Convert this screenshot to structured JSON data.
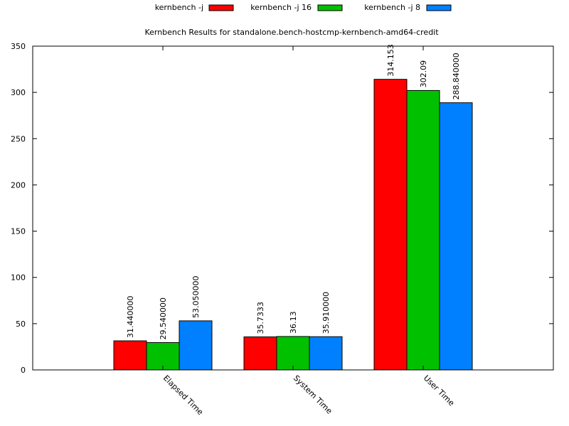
{
  "chart_data": {
    "type": "bar",
    "title": "Kernbench Results for standalone.bench-hostcmp-kernbench-amd64-credit",
    "xlabel": "",
    "ylabel": "",
    "ylim": [
      0,
      350
    ],
    "yticks": [
      "0",
      "50",
      "100",
      "150",
      "200",
      "250",
      "300",
      "350"
    ],
    "categories": [
      "Elapsed Time",
      "System Time",
      "User Time"
    ],
    "legend_position": "top",
    "grid": false,
    "series": [
      {
        "name": "kernbench -j",
        "color": "#ff0000",
        "values": [
          31.44,
          35.7333,
          314.153
        ],
        "labels": [
          "31.440000",
          "35.7333",
          "314.153"
        ]
      },
      {
        "name": "kernbench -j 16",
        "color": "#00c000",
        "values": [
          29.54,
          36.13,
          302.09
        ],
        "labels": [
          "29.540000",
          "36.13",
          "302.09"
        ]
      },
      {
        "name": "kernbench -j 8",
        "color": "#0080ff",
        "values": [
          53.05,
          35.91,
          288.84
        ],
        "labels": [
          "53.050000",
          "35.910000",
          "288.840000"
        ]
      }
    ]
  }
}
